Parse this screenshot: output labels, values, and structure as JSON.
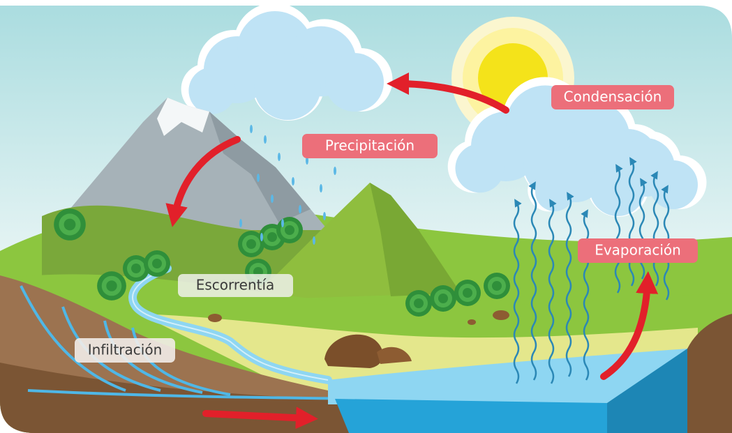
{
  "labels": [
    {
      "text": "Condensación"
    },
    {
      "text": "Precipitación"
    },
    {
      "text": "Evaporación"
    },
    {
      "text": "Escorrentía"
    },
    {
      "text": "Infiltración"
    }
  ]
}
